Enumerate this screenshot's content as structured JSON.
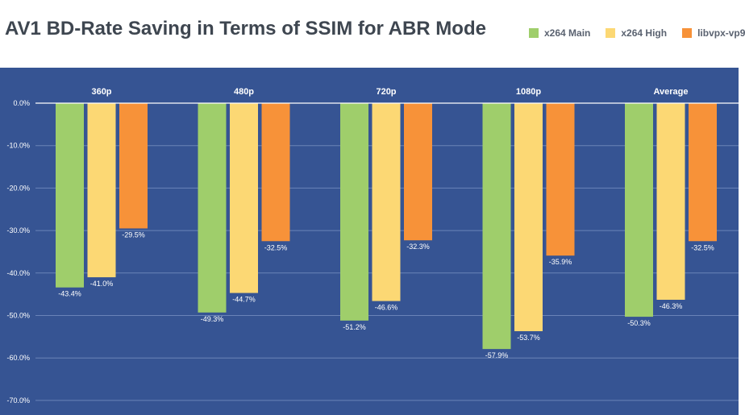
{
  "title": "AV1 BD-Rate Saving in Terms of SSIM for ABR Mode",
  "colors": {
    "background_plot": "#365493",
    "gridline": "#6a83b8",
    "zero_line": "#ffffff"
  },
  "chart_data": {
    "type": "bar",
    "title": "AV1 BD-Rate Saving in Terms of SSIM for ABR Mode",
    "xlabel": "",
    "ylabel": "",
    "categories": [
      "360p",
      "480p",
      "720p",
      "1080p",
      "Average"
    ],
    "series": [
      {
        "name": "x264 Main",
        "color": "#9fce6b",
        "values": [
          -43.4,
          -49.3,
          -51.2,
          -57.9,
          -50.3
        ],
        "labels": [
          "-43.4%",
          "-49.3%",
          "-51.2%",
          "-57.9%",
          "-50.3%"
        ]
      },
      {
        "name": "x264 High",
        "color": "#fcd874",
        "values": [
          -41.0,
          -44.7,
          -46.6,
          -53.7,
          -46.3
        ],
        "labels": [
          "-41.0%",
          "-44.7%",
          "-46.6%",
          "-53.7%",
          "-46.3%"
        ]
      },
      {
        "name": "libvpx-vp9",
        "color": "#f79239",
        "values": [
          -29.5,
          -32.5,
          -32.3,
          -35.9,
          -32.5
        ],
        "labels": [
          "-29.5%",
          "-32.5%",
          "-32.3%",
          "-35.9%",
          "-32.5%"
        ]
      }
    ],
    "ylim": [
      -70,
      0
    ],
    "yticks": [
      0,
      -10,
      -20,
      -30,
      -40,
      -50,
      -60,
      -70
    ],
    "ytick_labels": [
      "0.0%",
      "-10.0%",
      "-20.0%",
      "-30.0%",
      "-40.0%",
      "-50.0%",
      "-60.0%",
      "-70.0%"
    ],
    "category_labels_position": "top",
    "legend_position": "top-right",
    "grid": true
  }
}
